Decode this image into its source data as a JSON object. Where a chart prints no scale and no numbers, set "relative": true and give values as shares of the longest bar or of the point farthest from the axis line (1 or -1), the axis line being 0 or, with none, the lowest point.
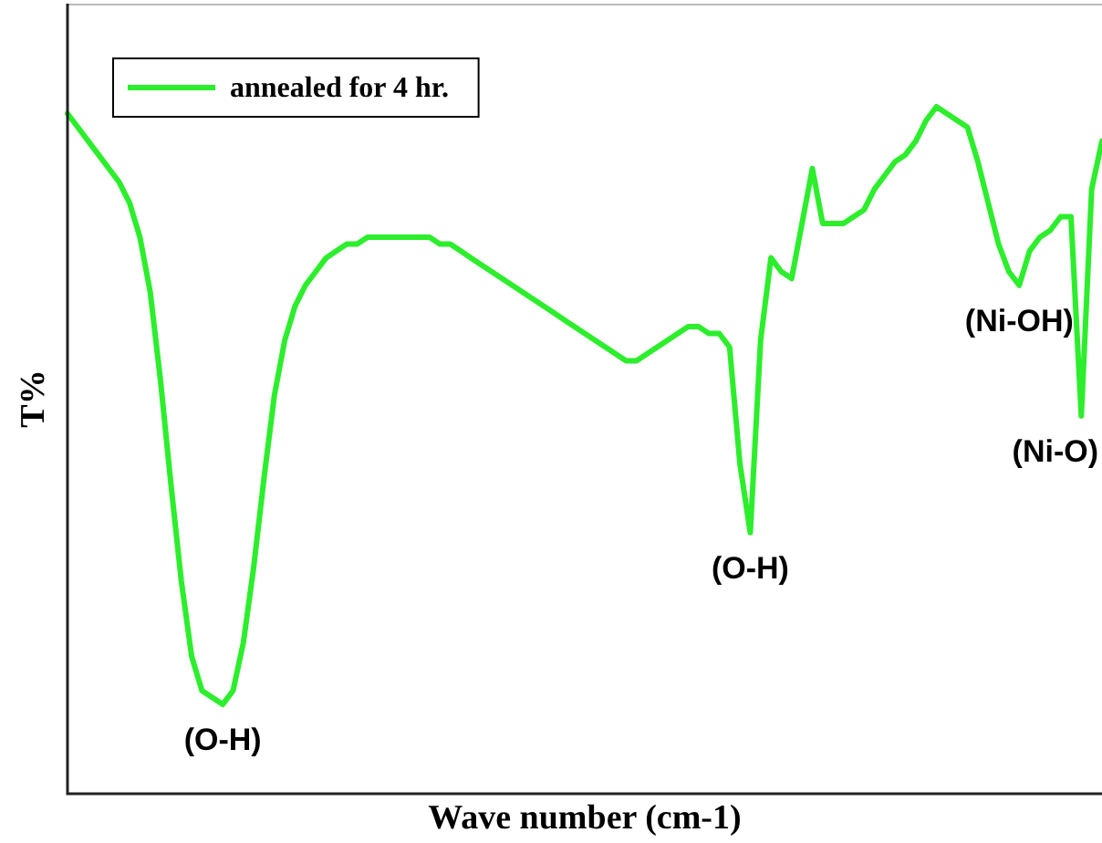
{
  "chart_data": {
    "type": "line",
    "relative": true,
    "xlabel": "Wave number (cm-1)",
    "ylabel": "T%",
    "legend": "top left",
    "marker": "none",
    "line_style": "solid",
    "categories": [
      null,
      null,
      null,
      null,
      null,
      null,
      null,
      null,
      null,
      null,
      null,
      null,
      null,
      null,
      null,
      null,
      null,
      null,
      null,
      null,
      null,
      null,
      null,
      null,
      null,
      null,
      null,
      null,
      null,
      null,
      null,
      null,
      null,
      null,
      null,
      null,
      null,
      null,
      null,
      null,
      null,
      null,
      null,
      null,
      null,
      null,
      null,
      null,
      null,
      null,
      null,
      null,
      null,
      null,
      null,
      null,
      null,
      null,
      null,
      null,
      null,
      null,
      null,
      null,
      null,
      null,
      null,
      null,
      null,
      null,
      null,
      null,
      null,
      null,
      null,
      null,
      null,
      null,
      null,
      null,
      null,
      null,
      null,
      null,
      null,
      null,
      null,
      null,
      null,
      null,
      null,
      null,
      null,
      null,
      null,
      null,
      null,
      null,
      null,
      null,
      null
    ],
    "series": [
      {
        "name": "annealed for 4 hr.",
        "color": "#2cee2c",
        "values": [
          0.99,
          0.97,
          0.95,
          0.93,
          0.91,
          0.89,
          0.86,
          0.81,
          0.73,
          0.6,
          0.45,
          0.31,
          0.2,
          0.15,
          0.14,
          0.13,
          0.15,
          0.22,
          0.33,
          0.46,
          0.58,
          0.66,
          0.71,
          0.74,
          0.76,
          0.78,
          0.79,
          0.8,
          0.8,
          0.81,
          0.81,
          0.81,
          0.81,
          0.81,
          0.81,
          0.81,
          0.8,
          0.8,
          0.79,
          0.78,
          0.77,
          0.76,
          0.75,
          0.74,
          0.73,
          0.72,
          0.71,
          0.7,
          0.69,
          0.68,
          0.67,
          0.66,
          0.65,
          0.64,
          0.63,
          0.63,
          0.64,
          0.65,
          0.66,
          0.67,
          0.68,
          0.68,
          0.67,
          0.67,
          0.65,
          0.48,
          0.38,
          0.66,
          0.78,
          0.76,
          0.75,
          0.83,
          0.91,
          0.83,
          0.83,
          0.83,
          0.84,
          0.85,
          0.88,
          0.9,
          0.92,
          0.93,
          0.95,
          0.98,
          1,
          0.99,
          0.98,
          0.97,
          0.92,
          0.86,
          0.8,
          0.76,
          0.74,
          0.79,
          0.81,
          0.82,
          0.84,
          0.84,
          0.55,
          0.88,
          0.95
        ]
      }
    ],
    "annotations": [
      "(O-H)",
      "(O-H)",
      "(Ni-OH)",
      "(Ni-O)"
    ]
  }
}
